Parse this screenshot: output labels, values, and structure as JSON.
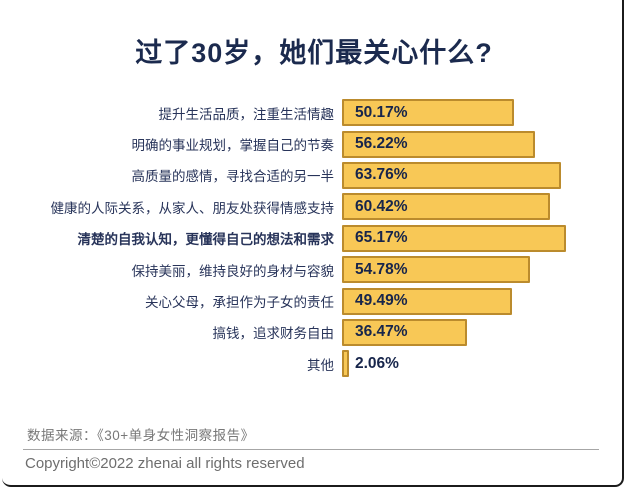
{
  "title": "过了30岁，她们最关心什么?",
  "chart_data": {
    "type": "bar",
    "orientation": "horizontal",
    "title": "过了30岁，她们最关心什么?",
    "value_unit": "%",
    "xlim": [
      0,
      68
    ],
    "grid": false,
    "legend": false,
    "bar_fill_color": "#F8C856",
    "bar_border_color": "#BB8B2D",
    "value_label_position": "inside-left",
    "categories": [
      "提升生活品质，注重生活情趣",
      "明确的事业规划，掌握自己的节奏",
      "高质量的感情，寻找合适的另一半",
      "健康的人际关系，从家人、朋友处获得情感支持",
      "清楚的自我认知，更懂得自己的想法和需求",
      "保持美丽，维持良好的身材与容貌",
      "关心父母，承担作为子女的责任",
      "搞钱，追求财务自由",
      "其他"
    ],
    "values": [
      50.17,
      56.22,
      63.76,
      60.42,
      65.17,
      54.78,
      49.49,
      36.47,
      2.06
    ],
    "rows": [
      {
        "label": "提升生活品质，注重生活情趣",
        "value": 50.17,
        "display": "50.17%",
        "bold": false
      },
      {
        "label": "明确的事业规划，掌握自己的节奏",
        "value": 56.22,
        "display": "56.22%",
        "bold": false
      },
      {
        "label": "高质量的感情，寻找合适的另一半",
        "value": 63.76,
        "display": "63.76%",
        "bold": false
      },
      {
        "label": "健康的人际关系，从家人、朋友处获得情感支持",
        "value": 60.42,
        "display": "60.42%",
        "bold": false
      },
      {
        "label": "清楚的自我认知，更懂得自己的想法和需求",
        "value": 65.17,
        "display": "65.17%",
        "bold": true
      },
      {
        "label": "保持美丽，维持良好的身材与容貌",
        "value": 54.78,
        "display": "54.78%",
        "bold": false
      },
      {
        "label": "关心父母，承担作为子女的责任",
        "value": 49.49,
        "display": "49.49%",
        "bold": false
      },
      {
        "label": "搞钱，追求财务自由",
        "value": 36.47,
        "display": "36.47%",
        "bold": false
      },
      {
        "label": "其他",
        "value": 2.06,
        "display": "2.06%",
        "bold": false
      }
    ]
  },
  "footer": {
    "source_note": "数据来源：《30+单身女性洞察报告》",
    "copyright": "Copyright©2022  zhenai  all rights reserved"
  },
  "colors": {
    "title_text": "#1B2A4E",
    "category_label_text": "#28345A",
    "value_label_text": "#17254B",
    "bar_fill": "#F8C856",
    "bar_border": "#BB8B2D",
    "footer_text": "#787878",
    "divider": "#A6A6A6",
    "frame_border": "#1B1B1B"
  }
}
